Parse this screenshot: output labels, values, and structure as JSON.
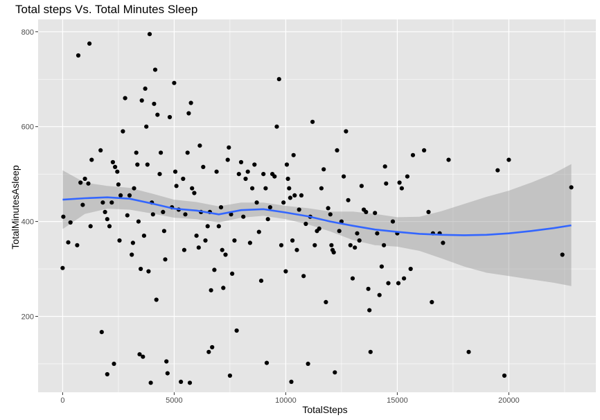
{
  "chart_data": {
    "type": "scatter",
    "title": "Total steps Vs. Total Minutes Sleep",
    "xlabel": "TotalSteps",
    "ylabel": "TotalMinutesAsleep",
    "xlim": [
      -1100,
      23900
    ],
    "ylim": [
      40,
      826
    ],
    "x_ticks": [
      0,
      5000,
      10000,
      15000,
      20000
    ],
    "x_tick_labels": [
      "0",
      "5000",
      "10000",
      "15000",
      "20000"
    ],
    "y_ticks": [
      200,
      400,
      600,
      800
    ],
    "y_tick_labels": [
      "200",
      "400",
      "600",
      "800"
    ],
    "grid": true,
    "legend": "none",
    "colors": {
      "panel_bg": "#e5e5e5",
      "grid": "#ffffff",
      "points": "#000000",
      "smooth_line": "#3366ff",
      "confidence_band": "#999999"
    },
    "points": [
      [
        0,
        302
      ],
      [
        30,
        410
      ],
      [
        250,
        356
      ],
      [
        350,
        398
      ],
      [
        650,
        350
      ],
      [
        700,
        750
      ],
      [
        800,
        482
      ],
      [
        900,
        435
      ],
      [
        1000,
        490
      ],
      [
        1200,
        775
      ],
      [
        1150,
        480
      ],
      [
        1250,
        390
      ],
      [
        1300,
        530
      ],
      [
        1700,
        550
      ],
      [
        1750,
        167
      ],
      [
        1800,
        440
      ],
      [
        2000,
        78
      ],
      [
        1900,
        420
      ],
      [
        2000,
        405
      ],
      [
        2100,
        390
      ],
      [
        2200,
        440
      ],
      [
        2300,
        100
      ],
      [
        2250,
        525
      ],
      [
        2350,
        515
      ],
      [
        2450,
        505
      ],
      [
        2500,
        478
      ],
      [
        2600,
        455
      ],
      [
        2550,
        360
      ],
      [
        2700,
        590
      ],
      [
        2800,
        660
      ],
      [
        2900,
        413
      ],
      [
        3000,
        455
      ],
      [
        3100,
        330
      ],
      [
        3150,
        355
      ],
      [
        3200,
        470
      ],
      [
        3300,
        545
      ],
      [
        3350,
        520
      ],
      [
        3400,
        400
      ],
      [
        3450,
        120
      ],
      [
        3500,
        300
      ],
      [
        3550,
        655
      ],
      [
        3600,
        115
      ],
      [
        3650,
        370
      ],
      [
        3700,
        680
      ],
      [
        3800,
        520
      ],
      [
        3750,
        600
      ],
      [
        3850,
        295
      ],
      [
        3900,
        795
      ],
      [
        3950,
        60
      ],
      [
        4000,
        440
      ],
      [
        4050,
        415
      ],
      [
        4100,
        648
      ],
      [
        4150,
        720
      ],
      [
        4200,
        235
      ],
      [
        4250,
        625
      ],
      [
        4350,
        500
      ],
      [
        4400,
        545
      ],
      [
        4500,
        420
      ],
      [
        4550,
        380
      ],
      [
        4600,
        320
      ],
      [
        4650,
        105
      ],
      [
        4700,
        80
      ],
      [
        4800,
        620
      ],
      [
        4900,
        430
      ],
      [
        5000,
        692
      ],
      [
        5050,
        505
      ],
      [
        5100,
        475
      ],
      [
        5200,
        425
      ],
      [
        5300,
        62
      ],
      [
        5400,
        490
      ],
      [
        5450,
        340
      ],
      [
        5500,
        415
      ],
      [
        5600,
        545
      ],
      [
        5650,
        628
      ],
      [
        5700,
        60
      ],
      [
        5750,
        650
      ],
      [
        5800,
        470
      ],
      [
        5900,
        460
      ],
      [
        6000,
        370
      ],
      [
        6100,
        345
      ],
      [
        6150,
        560
      ],
      [
        6200,
        420
      ],
      [
        6300,
        515
      ],
      [
        6400,
        360
      ],
      [
        6500,
        390
      ],
      [
        6550,
        125
      ],
      [
        6600,
        420
      ],
      [
        6650,
        255
      ],
      [
        6700,
        135
      ],
      [
        6800,
        298
      ],
      [
        6900,
        505
      ],
      [
        7000,
        390
      ],
      [
        7100,
        430
      ],
      [
        7150,
        340
      ],
      [
        7200,
        260
      ],
      [
        7300,
        330
      ],
      [
        7400,
        530
      ],
      [
        7450,
        556
      ],
      [
        7500,
        75
      ],
      [
        7550,
        415
      ],
      [
        7600,
        290
      ],
      [
        7700,
        360
      ],
      [
        7800,
        170
      ],
      [
        7900,
        500
      ],
      [
        8000,
        525
      ],
      [
        8100,
        410
      ],
      [
        8200,
        490
      ],
      [
        8300,
        505
      ],
      [
        8400,
        355
      ],
      [
        8500,
        470
      ],
      [
        8600,
        520
      ],
      [
        8700,
        440
      ],
      [
        8800,
        378
      ],
      [
        8900,
        275
      ],
      [
        9000,
        500
      ],
      [
        9100,
        470
      ],
      [
        9150,
        102
      ],
      [
        9200,
        405
      ],
      [
        9300,
        430
      ],
      [
        9400,
        500
      ],
      [
        9500,
        495
      ],
      [
        9600,
        600
      ],
      [
        9700,
        700
      ],
      [
        9800,
        350
      ],
      [
        9900,
        440
      ],
      [
        10000,
        295
      ],
      [
        10050,
        520
      ],
      [
        10100,
        490
      ],
      [
        10150,
        470
      ],
      [
        10200,
        450
      ],
      [
        10250,
        62
      ],
      [
        10300,
        360
      ],
      [
        10350,
        540
      ],
      [
        10400,
        455
      ],
      [
        10500,
        340
      ],
      [
        10600,
        425
      ],
      [
        10700,
        455
      ],
      [
        10800,
        285
      ],
      [
        10900,
        395
      ],
      [
        11000,
        100
      ],
      [
        11100,
        410
      ],
      [
        11200,
        610
      ],
      [
        11300,
        350
      ],
      [
        11400,
        380
      ],
      [
        11500,
        385
      ],
      [
        11600,
        470
      ],
      [
        11700,
        510
      ],
      [
        11800,
        230
      ],
      [
        11900,
        428
      ],
      [
        12000,
        415
      ],
      [
        12050,
        350
      ],
      [
        12100,
        340
      ],
      [
        12150,
        335
      ],
      [
        12200,
        82
      ],
      [
        12300,
        550
      ],
      [
        12400,
        380
      ],
      [
        12500,
        400
      ],
      [
        12600,
        495
      ],
      [
        12700,
        590
      ],
      [
        12800,
        445
      ],
      [
        12900,
        350
      ],
      [
        13000,
        280
      ],
      [
        13100,
        345
      ],
      [
        13200,
        375
      ],
      [
        13300,
        360
      ],
      [
        13400,
        475
      ],
      [
        13500,
        425
      ],
      [
        13600,
        420
      ],
      [
        13700,
        258
      ],
      [
        13750,
        213
      ],
      [
        13800,
        125
      ],
      [
        14000,
        418
      ],
      [
        14100,
        375
      ],
      [
        14200,
        245
      ],
      [
        14300,
        305
      ],
      [
        14400,
        350
      ],
      [
        14450,
        516
      ],
      [
        14500,
        480
      ],
      [
        14600,
        270
      ],
      [
        14800,
        400
      ],
      [
        15000,
        375
      ],
      [
        15050,
        270
      ],
      [
        15100,
        482
      ],
      [
        15200,
        470
      ],
      [
        15300,
        280
      ],
      [
        15450,
        495
      ],
      [
        15600,
        300
      ],
      [
        15700,
        540
      ],
      [
        16200,
        550
      ],
      [
        16400,
        420
      ],
      [
        16550,
        230
      ],
      [
        16600,
        375
      ],
      [
        16900,
        375
      ],
      [
        17050,
        355
      ],
      [
        17300,
        530
      ],
      [
        18200,
        125
      ],
      [
        19500,
        508
      ],
      [
        19800,
        75
      ],
      [
        20000,
        530
      ],
      [
        22400,
        330
      ],
      [
        22800,
        472
      ]
    ],
    "smooth_line": {
      "x": [
        0,
        1000,
        2000,
        3000,
        4000,
        5000,
        6000,
        7000,
        8000,
        9000,
        10000,
        11000,
        12000,
        13000,
        14000,
        15000,
        16000,
        17000,
        18000,
        19000,
        20000,
        21000,
        22000,
        22800
      ],
      "y": [
        446,
        449,
        451,
        448,
        438,
        427,
        423,
        415,
        424,
        426,
        419,
        411,
        400,
        391,
        383,
        378,
        374,
        372,
        371,
        372,
        375,
        380,
        386,
        392
      ]
    },
    "confidence_band": {
      "x": [
        0,
        1000,
        2000,
        3000,
        4000,
        5000,
        6000,
        7000,
        8000,
        9000,
        10000,
        11000,
        12000,
        13000,
        14000,
        15000,
        16000,
        17000,
        18000,
        19000,
        20000,
        21000,
        22000,
        22800
      ],
      "lower": [
        384,
        416,
        427,
        425,
        417,
        408,
        405,
        398,
        408,
        412,
        405,
        394,
        379,
        361,
        350,
        347,
        338,
        322,
        305,
        292,
        285,
        278,
        271,
        264
      ],
      "upper": [
        508,
        482,
        475,
        471,
        459,
        446,
        441,
        432,
        440,
        440,
        433,
        428,
        421,
        421,
        416,
        409,
        410,
        422,
        437,
        452,
        465,
        482,
        501,
        521
      ]
    }
  }
}
